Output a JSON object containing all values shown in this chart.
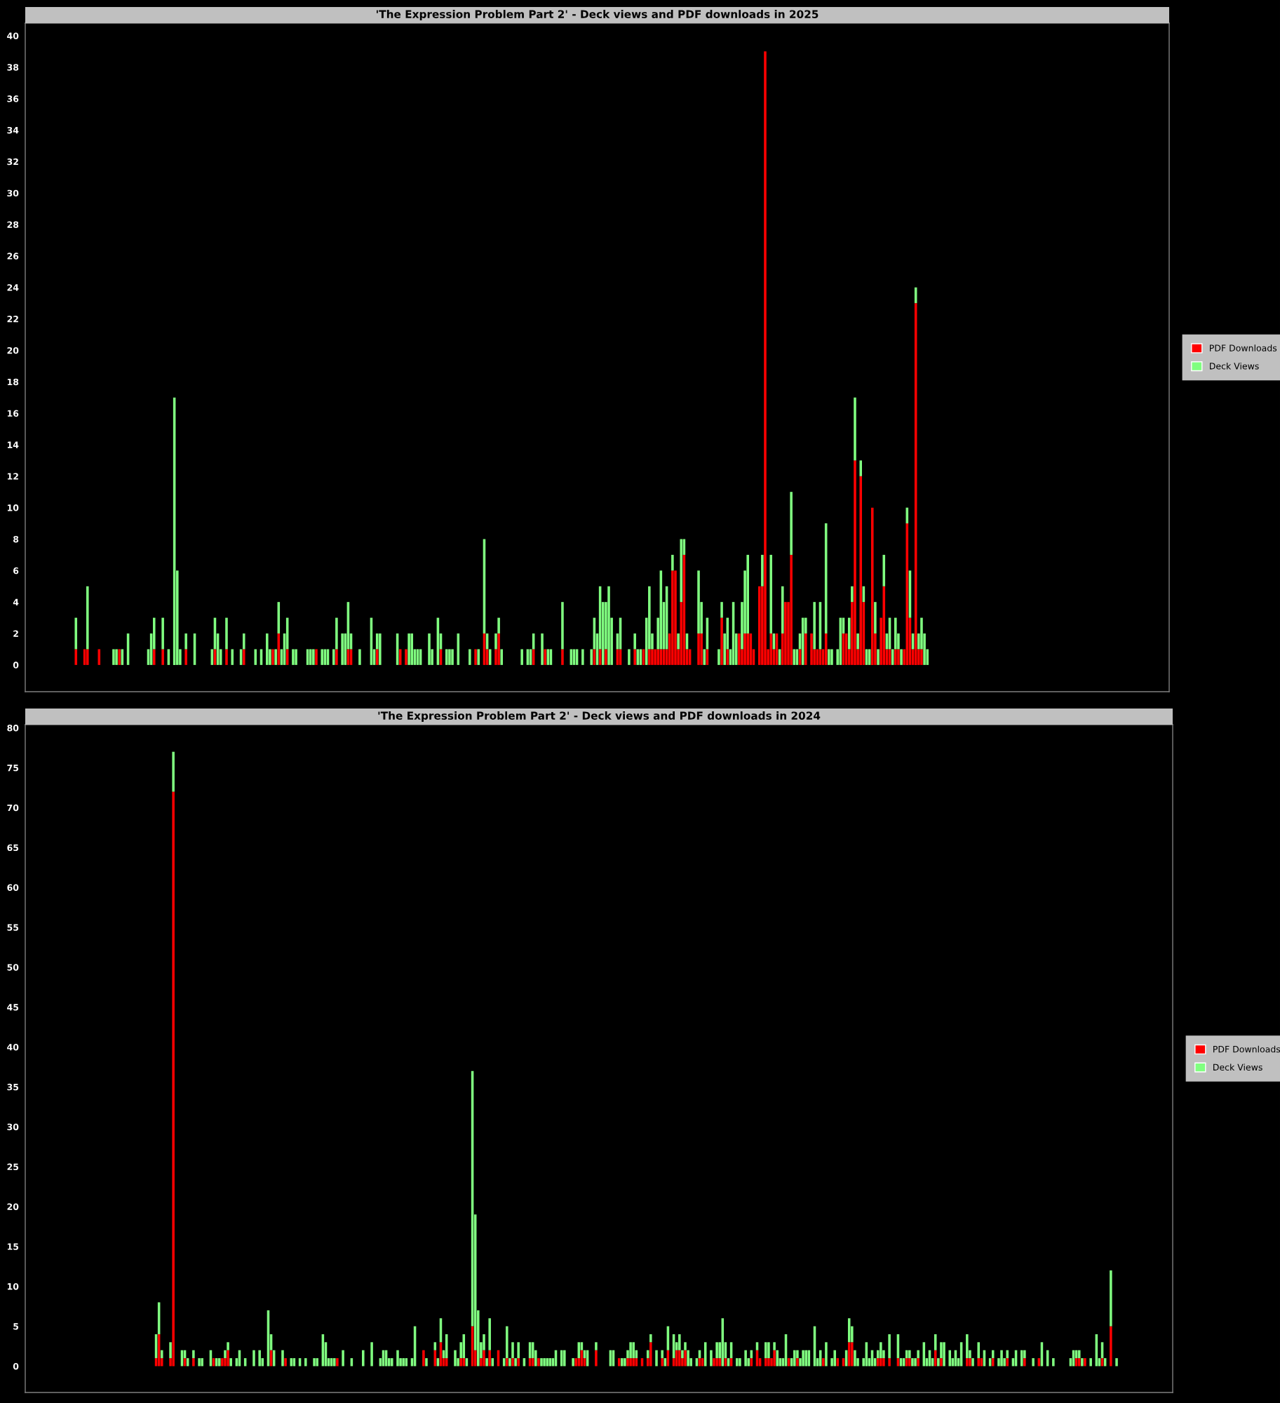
{
  "chart_data": [
    {
      "type": "bar",
      "title": "'The Expression Problem Part 2' - Deck views and PDF downloads in 2025",
      "stacked": true,
      "legend": "right",
      "tick_labels": "y",
      "grid": false,
      "ylim": [
        -1.7,
        40.8
      ],
      "yticks": [
        0,
        2,
        4,
        6,
        8,
        10,
        12,
        14,
        16,
        18,
        20,
        22,
        24,
        26,
        28,
        30,
        32,
        34,
        36,
        38,
        40
      ],
      "categories": [
        null,
        null,
        null,
        null,
        null,
        null,
        null,
        null,
        null,
        null,
        null,
        null,
        null,
        null,
        null,
        null,
        null,
        null,
        null,
        null,
        null,
        null,
        null,
        null,
        null,
        null,
        null,
        null,
        null,
        null,
        null,
        null,
        null,
        null,
        null,
        null,
        null,
        null,
        null,
        null,
        null,
        null,
        null,
        null,
        null,
        null,
        null,
        null,
        null,
        null,
        null,
        null,
        null,
        null,
        null,
        null,
        null,
        null,
        null,
        null,
        null,
        null,
        null,
        null,
        null,
        null,
        null,
        null,
        null,
        null,
        null,
        null,
        null,
        null,
        null,
        null,
        null,
        null,
        null,
        null,
        null,
        null,
        null,
        null,
        null,
        null,
        null,
        null,
        null,
        null,
        null,
        null,
        null,
        null,
        null,
        null,
        null,
        null,
        null,
        null,
        null,
        null,
        null,
        null,
        null,
        null,
        null,
        null,
        null,
        null,
        null,
        null,
        null,
        null,
        null,
        null,
        null,
        null,
        null,
        null,
        null,
        null,
        null,
        null,
        null,
        null,
        null,
        null,
        null,
        null,
        null,
        null,
        null,
        null,
        null,
        null,
        null,
        null,
        null,
        null,
        null,
        null,
        null,
        null,
        null,
        null,
        null,
        null,
        null,
        null,
        null,
        null,
        null,
        null,
        null,
        null,
        null,
        null,
        null,
        null,
        null,
        null,
        null,
        null,
        null,
        null,
        null,
        null,
        null,
        null,
        null,
        null,
        null,
        null,
        null,
        null,
        null,
        null,
        null,
        null,
        null,
        null,
        null,
        null,
        null,
        null,
        null,
        null,
        null,
        null,
        null,
        null,
        null,
        null,
        null,
        null,
        null,
        null,
        null,
        null,
        null,
        null,
        null,
        null,
        null,
        null,
        null,
        null,
        null,
        null,
        null,
        null,
        null,
        null,
        null,
        null,
        null,
        null,
        null,
        null,
        null,
        null,
        null,
        null,
        null,
        null,
        null,
        null,
        null,
        null,
        null,
        null,
        null,
        null,
        null,
        null,
        null,
        null,
        null,
        null,
        null,
        null,
        null,
        null,
        null,
        null,
        null,
        null,
        null,
        null,
        null,
        null,
        null,
        null,
        null,
        null,
        null,
        null,
        null,
        null,
        null,
        null,
        null,
        null,
        null,
        null,
        null,
        null,
        null,
        null,
        null,
        null,
        null,
        null,
        null,
        null,
        null,
        null,
        null,
        null,
        null,
        null,
        null,
        null,
        null,
        null,
        null,
        null,
        null,
        null,
        null,
        null,
        null,
        null,
        null,
        null,
        null,
        null,
        null,
        null,
        null,
        null,
        null,
        null,
        null,
        null,
        null,
        null,
        null,
        null,
        null,
        null,
        null,
        null,
        null,
        null,
        null,
        null,
        null,
        null,
        null,
        null,
        null,
        null,
        null,
        null,
        null,
        null,
        null,
        null,
        null,
        null,
        null,
        null,
        null,
        null,
        null,
        null,
        null,
        null,
        null,
        null,
        null,
        null,
        null,
        null,
        null,
        null,
        null,
        null,
        null,
        null,
        null,
        null,
        null,
        null,
        null,
        null,
        null,
        null,
        null,
        null,
        null,
        null,
        null,
        null,
        null,
        null,
        null,
        null,
        null,
        null,
        null,
        null,
        null,
        null,
        null,
        null,
        null,
        null,
        null,
        null,
        null,
        null,
        null,
        null,
        null,
        null,
        null,
        null,
        null,
        null,
        null,
        null,
        null
      ],
      "series": [
        {
          "name": "PDF Downloads",
          "color": "#ff0000",
          "values": [
            null,
            null,
            null,
            null,
            null,
            null,
            null,
            null,
            null,
            null,
            null,
            null,
            null,
            null,
            null,
            null,
            null,
            1,
            0,
            0,
            1,
            1,
            0,
            0,
            0,
            1,
            0,
            0,
            0,
            0,
            0,
            0,
            1,
            0,
            0,
            0,
            0,
            0,
            0,
            0,
            0,
            0,
            0,
            0,
            1,
            0,
            0,
            1,
            0,
            0,
            0,
            0,
            0,
            0,
            0,
            1,
            0,
            0,
            0,
            0,
            0,
            0,
            0,
            0,
            0,
            1,
            0,
            0,
            0,
            1,
            0,
            0,
            0,
            0,
            0,
            1,
            0,
            0,
            0,
            0,
            0,
            0,
            0,
            0,
            0,
            1,
            0,
            2,
            0,
            0,
            1,
            0,
            0,
            0,
            0,
            0,
            0,
            0,
            0,
            0,
            1,
            0,
            0,
            0,
            0,
            0,
            0,
            1,
            0,
            0,
            0,
            1,
            1,
            0,
            0,
            0,
            0,
            0,
            0,
            0,
            0,
            1,
            0,
            0,
            0,
            0,
            0,
            0,
            0,
            1,
            0,
            1,
            0,
            0,
            0,
            0,
            0,
            0,
            0,
            0,
            0,
            0,
            0,
            1,
            0,
            0,
            0,
            0,
            0,
            0,
            0,
            0,
            0,
            0,
            0,
            1,
            0,
            0,
            2,
            1,
            0,
            0,
            1,
            2,
            0,
            0,
            0,
            0,
            0,
            0,
            0,
            0,
            0,
            0,
            0,
            1,
            0,
            0,
            0,
            1,
            0,
            0,
            0,
            0,
            0,
            1,
            0,
            0,
            0,
            0,
            0,
            0,
            0,
            0,
            0,
            0,
            1,
            0,
            1,
            0,
            1,
            0,
            0,
            0,
            1,
            1,
            0,
            0,
            0,
            0,
            1,
            0,
            0,
            1,
            0,
            1,
            1,
            1,
            1,
            1,
            1,
            1,
            2,
            6,
            6,
            1,
            4,
            7,
            1,
            1,
            0,
            0,
            2,
            2,
            0,
            1,
            0,
            0,
            0,
            0,
            3,
            0,
            1,
            0,
            0,
            0,
            2,
            1,
            2,
            2,
            2,
            1,
            0,
            5,
            5,
            39,
            1,
            2,
            1,
            2,
            0,
            2,
            4,
            4,
            7,
            0,
            0,
            1,
            0,
            2,
            0,
            2,
            1,
            1,
            1,
            1,
            2,
            0,
            0,
            0,
            0,
            0,
            2,
            2,
            1,
            4,
            13,
            1,
            12,
            4,
            0,
            0,
            10,
            2,
            0,
            3,
            5,
            1,
            1,
            0,
            1,
            1,
            0,
            1,
            9,
            3,
            1,
            23,
            1,
            1,
            0,
            0,
            null,
            null,
            null,
            null,
            null,
            null,
            null,
            null,
            null,
            null,
            null,
            null,
            null,
            null,
            null,
            null,
            null,
            null,
            null,
            null,
            null,
            null,
            null,
            null,
            null,
            null,
            null,
            null,
            null,
            null,
            null,
            null,
            null,
            null,
            null,
            null,
            null,
            null,
            null,
            null,
            null,
            null,
            null,
            null,
            null,
            null,
            null,
            null,
            null,
            null,
            null,
            null,
            null,
            null,
            null,
            null,
            null,
            null,
            null,
            null,
            null,
            null,
            null,
            null,
            null,
            null,
            null,
            null,
            null,
            null,
            null,
            null,
            null,
            null,
            null,
            null,
            null,
            null,
            null,
            null,
            null,
            null,
            null
          ]
        },
        {
          "name": "Deck Views",
          "color": "#80ff80",
          "values": [
            null,
            null,
            null,
            null,
            null,
            null,
            null,
            null,
            null,
            null,
            null,
            null,
            null,
            null,
            null,
            null,
            null,
            2,
            0,
            0,
            0,
            4,
            0,
            0,
            0,
            0,
            0,
            0,
            0,
            0,
            1,
            1,
            0,
            1,
            0,
            2,
            0,
            0,
            0,
            0,
            0,
            0,
            1,
            2,
            2,
            0,
            0,
            2,
            0,
            1,
            0,
            17,
            6,
            1,
            0,
            1,
            0,
            0,
            2,
            0,
            0,
            0,
            0,
            0,
            1,
            2,
            2,
            1,
            0,
            2,
            0,
            1,
            0,
            0,
            1,
            1,
            0,
            0,
            0,
            1,
            0,
            1,
            0,
            2,
            1,
            0,
            1,
            2,
            1,
            2,
            2,
            0,
            1,
            1,
            0,
            0,
            0,
            1,
            1,
            1,
            0,
            0,
            1,
            1,
            1,
            0,
            1,
            2,
            0,
            2,
            2,
            3,
            1,
            0,
            0,
            1,
            0,
            0,
            0,
            3,
            1,
            1,
            2,
            0,
            0,
            0,
            0,
            0,
            2,
            0,
            0,
            0,
            2,
            2,
            1,
            1,
            1,
            0,
            0,
            2,
            1,
            0,
            3,
            1,
            0,
            1,
            1,
            1,
            0,
            2,
            0,
            0,
            0,
            1,
            0,
            0,
            1,
            0,
            6,
            1,
            1,
            0,
            1,
            1,
            1,
            0,
            0,
            0,
            0,
            0,
            0,
            1,
            0,
            1,
            1,
            1,
            0,
            0,
            2,
            0,
            1,
            1,
            0,
            0,
            0,
            3,
            0,
            0,
            1,
            1,
            1,
            0,
            1,
            0,
            0,
            1,
            2,
            2,
            4,
            4,
            3,
            5,
            3,
            0,
            1,
            2,
            0,
            0,
            1,
            0,
            1,
            1,
            1,
            0,
            3,
            4,
            1,
            0,
            2,
            5,
            3,
            4,
            0,
            1,
            0,
            1,
            4,
            1,
            1,
            0,
            0,
            0,
            4,
            2,
            1,
            2,
            0,
            0,
            0,
            1,
            1,
            2,
            2,
            1,
            4,
            2,
            0,
            3,
            4,
            5,
            0,
            0,
            0,
            0,
            2,
            0,
            0,
            5,
            1,
            0,
            1,
            3,
            0,
            0,
            4,
            1,
            1,
            1,
            3,
            1,
            0,
            0,
            3,
            0,
            3,
            0,
            7,
            1,
            1,
            0,
            1,
            3,
            1,
            0,
            2,
            1,
            4,
            1,
            1,
            1,
            1,
            1,
            0,
            2,
            1,
            0,
            2,
            1,
            2,
            1,
            2,
            1,
            1,
            0,
            1,
            3,
            1,
            1,
            1,
            2,
            2,
            1,
            null,
            null,
            null,
            null,
            null,
            null,
            null,
            null,
            null,
            null,
            null,
            null,
            null,
            null,
            null,
            null,
            null,
            null,
            null,
            null,
            null,
            null,
            null,
            null,
            null,
            null,
            null,
            null,
            null,
            null,
            null,
            null,
            null,
            null,
            null,
            null,
            null,
            null,
            null,
            null,
            null,
            null,
            null,
            null,
            null,
            null,
            null,
            null,
            null,
            null,
            null,
            null,
            null,
            null,
            null,
            null,
            null,
            null,
            null,
            null,
            null,
            null,
            null,
            null,
            null,
            null,
            null,
            null,
            null,
            null,
            null,
            null,
            null,
            null,
            null,
            null,
            null,
            null,
            null,
            null,
            null,
            null,
            null
          ]
        }
      ]
    },
    {
      "type": "bar",
      "title": "'The Expression Problem Part 2' - Deck views and PDF downloads in 2024",
      "stacked": true,
      "legend": "right",
      "tick_labels": "y",
      "grid": false,
      "ylim": [
        -3.3,
        80.4
      ],
      "yticks": [
        0,
        5,
        10,
        15,
        20,
        25,
        30,
        35,
        40,
        45,
        50,
        55,
        60,
        65,
        70,
        75,
        80
      ],
      "categories": [
        null,
        null,
        null,
        null,
        null,
        null,
        null,
        null,
        null,
        null,
        null,
        null,
        null,
        null,
        null,
        null,
        null,
        null,
        null,
        null,
        null,
        null,
        null,
        null,
        null,
        null,
        null,
        null,
        null,
        null,
        null,
        null,
        null,
        null,
        null,
        null,
        null,
        null,
        null,
        null,
        null,
        null,
        null,
        null,
        null,
        null,
        null,
        null,
        null,
        null,
        null,
        null,
        null,
        null,
        null,
        null,
        null,
        null,
        null,
        null,
        null,
        null,
        null,
        null,
        null,
        null,
        null,
        null,
        null,
        null,
        null,
        null,
        null,
        null,
        null,
        null,
        null,
        null,
        null,
        null,
        null,
        null,
        null,
        null,
        null,
        null,
        null,
        null,
        null,
        null,
        null,
        null,
        null,
        null,
        null,
        null,
        null,
        null,
        null,
        null,
        null,
        null,
        null,
        null,
        null,
        null,
        null,
        null,
        null,
        null,
        null,
        null,
        null,
        null,
        null,
        null,
        null,
        null,
        null,
        null,
        null,
        null,
        null,
        null,
        null,
        null,
        null,
        null,
        null,
        null,
        null,
        null,
        null,
        null,
        null,
        null,
        null,
        null,
        null,
        null,
        null,
        null,
        null,
        null,
        null,
        null,
        null,
        null,
        null,
        null,
        null,
        null,
        null,
        null,
        null,
        null,
        null,
        null,
        null,
        null,
        null,
        null,
        null,
        null,
        null,
        null,
        null,
        null,
        null,
        null,
        null,
        null,
        null,
        null,
        null,
        null,
        null,
        null,
        null,
        null,
        null,
        null,
        null,
        null,
        null,
        null,
        null,
        null,
        null,
        null,
        null,
        null,
        null,
        null,
        null,
        null,
        null,
        null,
        null,
        null,
        null,
        null,
        null,
        null,
        null,
        null,
        null,
        null,
        null,
        null,
        null,
        null,
        null,
        null,
        null,
        null,
        null,
        null,
        null,
        null,
        null,
        null,
        null,
        null,
        null,
        null,
        null,
        null,
        null,
        null,
        null,
        null,
        null,
        null,
        null,
        null,
        null,
        null,
        null,
        null,
        null,
        null,
        null,
        null,
        null,
        null,
        null,
        null,
        null,
        null,
        null,
        null,
        null,
        null,
        null,
        null,
        null,
        null,
        null,
        null,
        null,
        null,
        null,
        null,
        null,
        null,
        null,
        null,
        null,
        null,
        null,
        null,
        null,
        null,
        null,
        null,
        null,
        null,
        null,
        null,
        null,
        null,
        null,
        null,
        null,
        null,
        null,
        null,
        null,
        null,
        null,
        null,
        null,
        null,
        null,
        null,
        null,
        null,
        null,
        null,
        null,
        null,
        null,
        null,
        null,
        null,
        null,
        null,
        null,
        null,
        null,
        null,
        null,
        null,
        null,
        null,
        null,
        null,
        null,
        null,
        null,
        null,
        null,
        null,
        null,
        null,
        null,
        null,
        null,
        null,
        null,
        null,
        null,
        null,
        null,
        null,
        null,
        null,
        null,
        null,
        null,
        null,
        null,
        null,
        null,
        null,
        null,
        null,
        null,
        null,
        null,
        null,
        null,
        null,
        null,
        null,
        null,
        null,
        null,
        null,
        null,
        null,
        null,
        null,
        null,
        null,
        null,
        null,
        null,
        null,
        null,
        null,
        null,
        null,
        null,
        null,
        null,
        null,
        null,
        null,
        null,
        null,
        null,
        null,
        null,
        null,
        null,
        null,
        null,
        null,
        null,
        null,
        null,
        null,
        null,
        null,
        null,
        null,
        null
      ],
      "series": [
        {
          "name": "PDF Downloads",
          "color": "#ff0000",
          "values": [
            null,
            null,
            null,
            null,
            null,
            null,
            null,
            null,
            null,
            null,
            null,
            null,
            null,
            null,
            null,
            null,
            null,
            null,
            null,
            null,
            null,
            null,
            null,
            null,
            null,
            null,
            null,
            null,
            null,
            null,
            null,
            null,
            null,
            null,
            null,
            null,
            null,
            null,
            null,
            null,
            null,
            null,
            null,
            null,
            null,
            1,
            4,
            1,
            0,
            0,
            1,
            72,
            0,
            0,
            0,
            1,
            0,
            0,
            1,
            0,
            0,
            0,
            0,
            0,
            0,
            1,
            0,
            0,
            1,
            1,
            2,
            0,
            0,
            0,
            0,
            0,
            0,
            0,
            0,
            0,
            0,
            0,
            0,
            0,
            0,
            2,
            0,
            0,
            0,
            0,
            1,
            0,
            0,
            0,
            0,
            0,
            0,
            0,
            0,
            0,
            0,
            0,
            0,
            0,
            0,
            0,
            0,
            0,
            1,
            0,
            0,
            0,
            0,
            0,
            0,
            0,
            0,
            0,
            0,
            0,
            0,
            0,
            0,
            0,
            0,
            0,
            0,
            0,
            0,
            0,
            0,
            0,
            0,
            0,
            0,
            0,
            0,
            0,
            2,
            0,
            0,
            0,
            2,
            0,
            3,
            1,
            1,
            0,
            0,
            0,
            0,
            1,
            1,
            0,
            0,
            5,
            2,
            0,
            1,
            2,
            0,
            2,
            0,
            0,
            2,
            0,
            0,
            1,
            0,
            1,
            0,
            1,
            0,
            0,
            0,
            1,
            1,
            0,
            1,
            0,
            0,
            0,
            0,
            0,
            0,
            0,
            0,
            0,
            0,
            0,
            0,
            1,
            1,
            2,
            1,
            0,
            0,
            0,
            2,
            0,
            0,
            0,
            0,
            0,
            0,
            0,
            1,
            0,
            0,
            1,
            1,
            1,
            1,
            0,
            1,
            0,
            1,
            3,
            0,
            0,
            0,
            1,
            0,
            2,
            0,
            1,
            2,
            2,
            1,
            2,
            0,
            0,
            0,
            0,
            1,
            1,
            0,
            0,
            0,
            1,
            1,
            1,
            0,
            1,
            0,
            1,
            0,
            0,
            0,
            0,
            0,
            0,
            1,
            0,
            2,
            1,
            0,
            1,
            1,
            1,
            2,
            0,
            0,
            0,
            0,
            1,
            0,
            0,
            1,
            0,
            0,
            0,
            0,
            0,
            0,
            0,
            0,
            1,
            0,
            0,
            0,
            0,
            1,
            0,
            1,
            0,
            3,
            3,
            0,
            0,
            0,
            0,
            0,
            0,
            0,
            0,
            1,
            1,
            1,
            0,
            1,
            0,
            0,
            1,
            0,
            0,
            1,
            1,
            0,
            0,
            1,
            0,
            0,
            0,
            0,
            0,
            2,
            0,
            1,
            0,
            0,
            0,
            0,
            0,
            0,
            0,
            0,
            1,
            1,
            0,
            0,
            1,
            1,
            0,
            0,
            0,
            1,
            0,
            0,
            0,
            0,
            1,
            0,
            0,
            0,
            0,
            0,
            1,
            0,
            0,
            0,
            0,
            1,
            0,
            0,
            0,
            0,
            0,
            0,
            0,
            0,
            0,
            0,
            0,
            0,
            1,
            1,
            0,
            1,
            0,
            0,
            0,
            0,
            0,
            1,
            0,
            0,
            5,
            0,
            0,
            null,
            null,
            null,
            null,
            null,
            null,
            null,
            null,
            null,
            null,
            null,
            null,
            null,
            null,
            null,
            null,
            null,
            null,
            null
          ]
        },
        {
          "name": "Deck Views",
          "color": "#80ff80",
          "values": [
            null,
            null,
            null,
            null,
            null,
            null,
            null,
            null,
            null,
            null,
            null,
            null,
            null,
            null,
            null,
            null,
            null,
            null,
            null,
            null,
            null,
            null,
            null,
            null,
            null,
            null,
            null,
            null,
            null,
            null,
            null,
            null,
            null,
            null,
            null,
            null,
            null,
            null,
            null,
            null,
            null,
            null,
            null,
            null,
            null,
            3,
            4,
            1,
            0,
            0,
            2,
            5,
            0,
            0,
            2,
            1,
            1,
            0,
            1,
            0,
            1,
            1,
            0,
            0,
            2,
            0,
            1,
            1,
            0,
            1,
            1,
            1,
            0,
            1,
            2,
            0,
            1,
            0,
            0,
            2,
            0,
            2,
            1,
            0,
            7,
            2,
            2,
            0,
            0,
            2,
            0,
            0,
            1,
            1,
            0,
            1,
            0,
            1,
            0,
            0,
            1,
            1,
            0,
            4,
            3,
            1,
            1,
            1,
            0,
            0,
            2,
            0,
            0,
            1,
            0,
            0,
            0,
            2,
            0,
            0,
            3,
            0,
            0,
            1,
            2,
            2,
            1,
            1,
            0,
            2,
            1,
            1,
            1,
            0,
            1,
            5,
            0,
            0,
            0,
            1,
            0,
            0,
            1,
            1,
            3,
            1,
            3,
            0,
            0,
            2,
            1,
            2,
            3,
            1,
            0,
            32,
            17,
            7,
            2,
            2,
            1,
            4,
            1,
            0,
            0,
            0,
            1,
            4,
            1,
            2,
            1,
            2,
            0,
            1,
            0,
            2,
            2,
            2,
            0,
            1,
            1,
            1,
            1,
            1,
            2,
            0,
            2,
            2,
            0,
            0,
            1,
            0,
            2,
            1,
            1,
            2,
            0,
            0,
            1,
            0,
            0,
            0,
            0,
            2,
            2,
            0,
            0,
            1,
            1,
            1,
            2,
            2,
            1,
            0,
            0,
            0,
            1,
            1,
            0,
            2,
            0,
            1,
            1,
            3,
            0,
            3,
            1,
            2,
            1,
            1,
            2,
            1,
            0,
            1,
            1,
            0,
            3,
            0,
            2,
            0,
            2,
            2,
            6,
            2,
            1,
            2,
            0,
            1,
            1,
            0,
            2,
            1,
            1,
            0,
            1,
            0,
            0,
            2,
            2,
            0,
            1,
            2,
            1,
            1,
            4,
            0,
            1,
            2,
            1,
            1,
            2,
            2,
            2,
            0,
            5,
            1,
            2,
            0,
            3,
            0,
            1,
            2,
            0,
            0,
            0,
            2,
            3,
            2,
            2,
            1,
            0,
            1,
            3,
            1,
            2,
            1,
            1,
            2,
            1,
            0,
            3,
            0,
            0,
            3,
            1,
            1,
            1,
            1,
            1,
            1,
            1,
            0,
            3,
            1,
            2,
            1,
            2,
            1,
            2,
            3,
            0,
            2,
            1,
            2,
            1,
            3,
            0,
            3,
            1,
            1,
            0,
            2,
            0,
            2,
            0,
            1,
            1,
            0,
            1,
            2,
            1,
            1,
            0,
            1,
            2,
            0,
            2,
            1,
            0,
            0,
            1,
            0,
            0,
            3,
            0,
            2,
            0,
            1,
            0,
            0,
            0,
            0,
            0,
            1,
            2,
            1,
            1,
            1,
            0,
            0,
            1,
            0,
            4,
            1,
            2,
            1,
            0,
            7,
            0,
            1,
            null,
            null,
            null,
            null,
            null,
            null,
            null,
            null,
            null,
            null,
            null,
            null,
            null,
            null,
            null,
            null,
            null,
            null,
            null
          ]
        }
      ]
    }
  ]
}
